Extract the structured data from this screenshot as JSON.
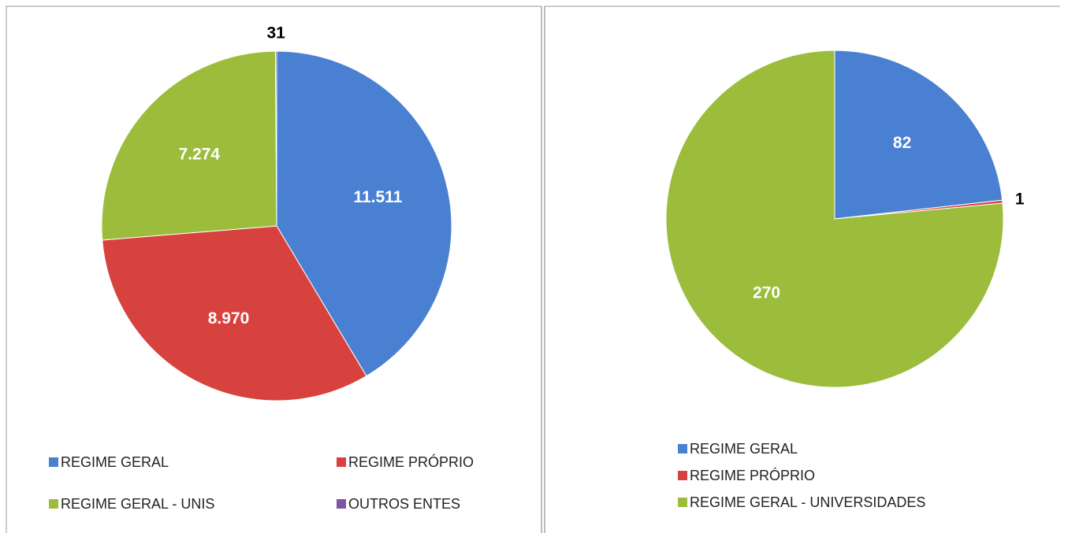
{
  "chart_data": [
    {
      "type": "pie",
      "categories": [
        "REGIME GERAL",
        "REGIME PRÓPRIO",
        "REGIME GERAL - UNIS",
        "OUTROS ENTES"
      ],
      "values": [
        11511,
        8970,
        7274,
        31
      ],
      "value_labels": [
        "11.511",
        "8.970",
        "7.274",
        "31"
      ],
      "colors": [
        "#4a80d2",
        "#d8423e",
        "#9cbd3c",
        "#7f55a3"
      ]
    },
    {
      "type": "pie",
      "categories": [
        "REGIME GERAL",
        "REGIME PRÓPRIO",
        "REGIME GERAL - UNIVERSIDADES"
      ],
      "values": [
        82,
        1,
        270
      ],
      "value_labels": [
        "82",
        "1",
        "270"
      ],
      "colors": [
        "#4a80d2",
        "#d8423e",
        "#9cbd3c"
      ]
    }
  ]
}
